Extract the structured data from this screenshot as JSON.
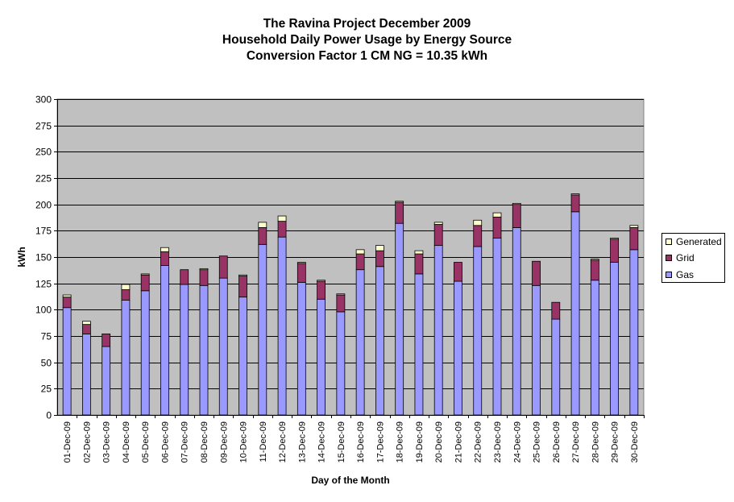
{
  "chart_data": {
    "type": "bar",
    "stacked": true,
    "title": "The Ravina Project December 2009",
    "subtitle_lines": [
      "Household Daily Power Usage by Energy Source",
      "Conversion Factor 1 CM NG = 10.35 kWh"
    ],
    "xlabel": "Day of the Month",
    "ylabel": "kWh",
    "ylim": [
      0,
      300
    ],
    "yticks": [
      0,
      25,
      50,
      75,
      100,
      125,
      150,
      175,
      200,
      225,
      250,
      275,
      300
    ],
    "grid": true,
    "legend_position": "right",
    "categories": [
      "01-Dec-09",
      "02-Dec-09",
      "03-Dec-09",
      "04-Dec-09",
      "05-Dec-09",
      "06-Dec-09",
      "07-Dec-09",
      "08-Dec-09",
      "09-Dec-09",
      "10-Dec-09",
      "11-Dec-09",
      "12-Dec-09",
      "13-Dec-09",
      "14-Dec-09",
      "15-Dec-09",
      "16-Dec-09",
      "17-Dec-09",
      "18-Dec-09",
      "19-Dec-09",
      "20-Dec-09",
      "21-Dec-09",
      "22-Dec-09",
      "23-Dec-09",
      "24-Dec-09",
      "25-Dec-09",
      "26-Dec-09",
      "27-Dec-09",
      "28-Dec-09",
      "29-Dec-09",
      "30-Dec-09"
    ],
    "series": [
      {
        "name": "Gas",
        "color": "#9999ff",
        "values": [
          102,
          77,
          65,
          109,
          118,
          142,
          124,
          123,
          130,
          112,
          162,
          169,
          126,
          110,
          98,
          138,
          141,
          182,
          134,
          161,
          127,
          160,
          168,
          178,
          123,
          91,
          193,
          128,
          145,
          157
        ]
      },
      {
        "name": "Grid",
        "color": "#993366",
        "values": [
          10,
          9,
          12,
          10,
          15,
          13,
          14,
          15,
          21,
          20,
          16,
          15,
          18,
          17,
          16,
          15,
          15,
          20,
          19,
          20,
          18,
          20,
          20,
          22,
          23,
          16,
          16,
          19,
          22,
          21
        ]
      },
      {
        "name": "Generated",
        "color": "#ffffcc",
        "values": [
          2,
          3,
          0,
          5,
          1,
          4,
          0,
          1,
          0,
          1,
          5,
          5,
          1,
          1,
          1,
          4,
          5,
          1,
          3,
          2,
          0,
          5,
          4,
          1,
          0,
          0,
          1,
          1,
          1,
          2
        ]
      }
    ],
    "colors": {
      "plot_background": "#c0c0c0",
      "gridline": "#000000"
    }
  }
}
